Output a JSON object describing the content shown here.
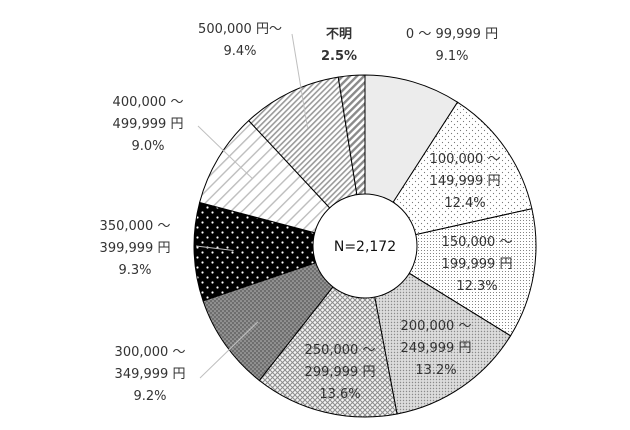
{
  "chart_data": {
    "type": "pie",
    "subtype": "donut",
    "center_label": "N=2,172",
    "slices": [
      {
        "label_lines": [
          "0 ～ 99,999 円"
        ],
        "percent": 9.1,
        "percent_text": "9.1%",
        "pattern": "light-gray"
      },
      {
        "label_lines": [
          "100,000 ～",
          "149,999 円"
        ],
        "percent": 12.4,
        "percent_text": "12.4%",
        "pattern": "sparse-dots"
      },
      {
        "label_lines": [
          "150,000 ～",
          "199,999 円"
        ],
        "percent": 12.3,
        "percent_text": "12.3%",
        "pattern": "fine-dots"
      },
      {
        "label_lines": [
          "200,000 ～",
          "249,999 円"
        ],
        "percent": 13.2,
        "percent_text": "13.2%",
        "pattern": "medium-dots"
      },
      {
        "label_lines": [
          "250,000 ～",
          "299,999 円"
        ],
        "percent": 13.6,
        "percent_text": "13.6%",
        "pattern": "crosshatch"
      },
      {
        "label_lines": [
          "300,000 ～",
          "349,999 円"
        ],
        "percent": 9.2,
        "percent_text": "9.2%",
        "pattern": "dark-dots"
      },
      {
        "label_lines": [
          "350,000 ～",
          "399,999 円"
        ],
        "percent": 9.3,
        "percent_text": "9.3%",
        "pattern": "black-white-dots"
      },
      {
        "label_lines": [
          "400,000 ～",
          "499,999 円"
        ],
        "percent": 9.0,
        "percent_text": "9.0%",
        "pattern": "wide-diagonal"
      },
      {
        "label_lines": [
          "500,000 円～"
        ],
        "percent": 9.4,
        "percent_text": "9.4%",
        "pattern": "diagonal-stripes"
      },
      {
        "label_lines": [
          "不明"
        ],
        "percent": 2.5,
        "percent_text": "2.5%",
        "pattern": "bold-diagonal"
      }
    ],
    "legend": "none"
  }
}
